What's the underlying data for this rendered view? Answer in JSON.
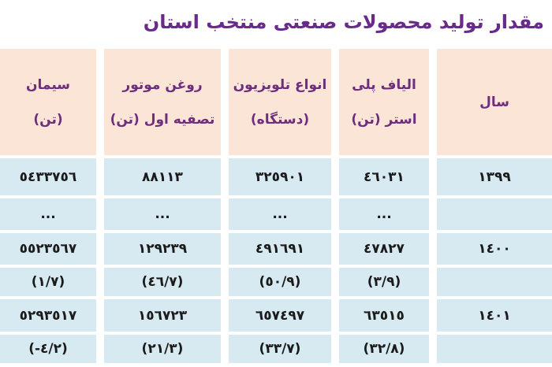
{
  "title": "مقدار تولید محصولات صنعتی منتخب استان",
  "colors": {
    "background": "#ffffff",
    "title_text": "#692a8c",
    "header_bg": "#fbe5d6",
    "header_text": "#6e2d7d",
    "cell_bg": "#d7eaf2",
    "cell_text": "#1b1b1b"
  },
  "table": {
    "headers": [
      {
        "id": "year",
        "line1": "سال",
        "line2": ""
      },
      {
        "id": "polyester_fiber",
        "line1": "الیاف پلی",
        "line2": "استر (تن)"
      },
      {
        "id": "tv",
        "line1": "انواع تلویزیون",
        "line2": "(دستگاه)"
      },
      {
        "id": "motor_oil",
        "line1": "روغن موتور",
        "line2": "تصفیه اول (تن)"
      },
      {
        "id": "cement",
        "line1": "سیمان",
        "line2": "(تن)"
      }
    ],
    "rows": [
      {
        "year": "١٣٩٩",
        "fiber": "٤٦٠٣١",
        "tv": "٣٢٥٩٠١",
        "oil": "٨٨١١٣",
        "cement": "٥٤٣٣٧٥٦"
      },
      {
        "year": "",
        "fiber": "...",
        "tv": "...",
        "oil": "...",
        "cement": "..."
      },
      {
        "year": "١٤٠٠",
        "fiber": "٤٧٨٢٧",
        "tv": "٤٩١٦٩١",
        "oil": "١٢٩٢٣٩",
        "cement": "٥٥٢٣٥٦٧"
      },
      {
        "year": "",
        "fiber": "(٣/٩)",
        "tv": "(٥٠/٩)",
        "oil": "(٤٦/٧)",
        "cement": "(١/٧)"
      },
      {
        "year": "١٤٠١",
        "fiber": "٦٣٥١٥",
        "tv": "٦٥٧٤٩٧",
        "oil": "١٥٦٧٢٣",
        "cement": "٥٢٩٣٥١٧"
      },
      {
        "year": "",
        "fiber": "(٣٢/٨)",
        "tv": "(٣٣/٧)",
        "oil": "(٢١/٣)",
        "cement": "(-٤/٢)"
      }
    ]
  },
  "chart_data": {
    "type": "table",
    "title": "مقدار تولید محصولات صنعتی منتخب استان",
    "columns": [
      "سال",
      "الیاف پلی استر (تن)",
      "انواع تلویزیون (دستگاه)",
      "روغن موتور تصفیه اول (تن)",
      "سیمان (تن)"
    ],
    "rows": [
      {
        "year": 1399,
        "polyester_fiber_tons": 46031,
        "tv_units": 325901,
        "motor_oil_tons": 88113,
        "cement_tons": 5433756
      },
      {
        "year": null,
        "polyester_fiber_tons": null,
        "tv_units": null,
        "motor_oil_tons": null,
        "cement_tons": null,
        "note": "..."
      },
      {
        "year": 1400,
        "polyester_fiber_tons": 47827,
        "tv_units": 491691,
        "motor_oil_tons": 129239,
        "cement_tons": 5523567,
        "growth_percent": {
          "polyester_fiber": 3.9,
          "tv": 50.9,
          "motor_oil": 46.7,
          "cement": 1.7
        }
      },
      {
        "year": 1401,
        "polyester_fiber_tons": 63515,
        "tv_units": 657497,
        "motor_oil_tons": 156723,
        "cement_tons": 5293517,
        "growth_percent": {
          "polyester_fiber": 32.8,
          "tv": 33.7,
          "motor_oil": 21.3,
          "cement": -4.2
        }
      }
    ],
    "notes": "Values in Eastern Arabic numerals; parenthesized rows are year-over-year growth percentages; decimal separator rendered as /"
  }
}
